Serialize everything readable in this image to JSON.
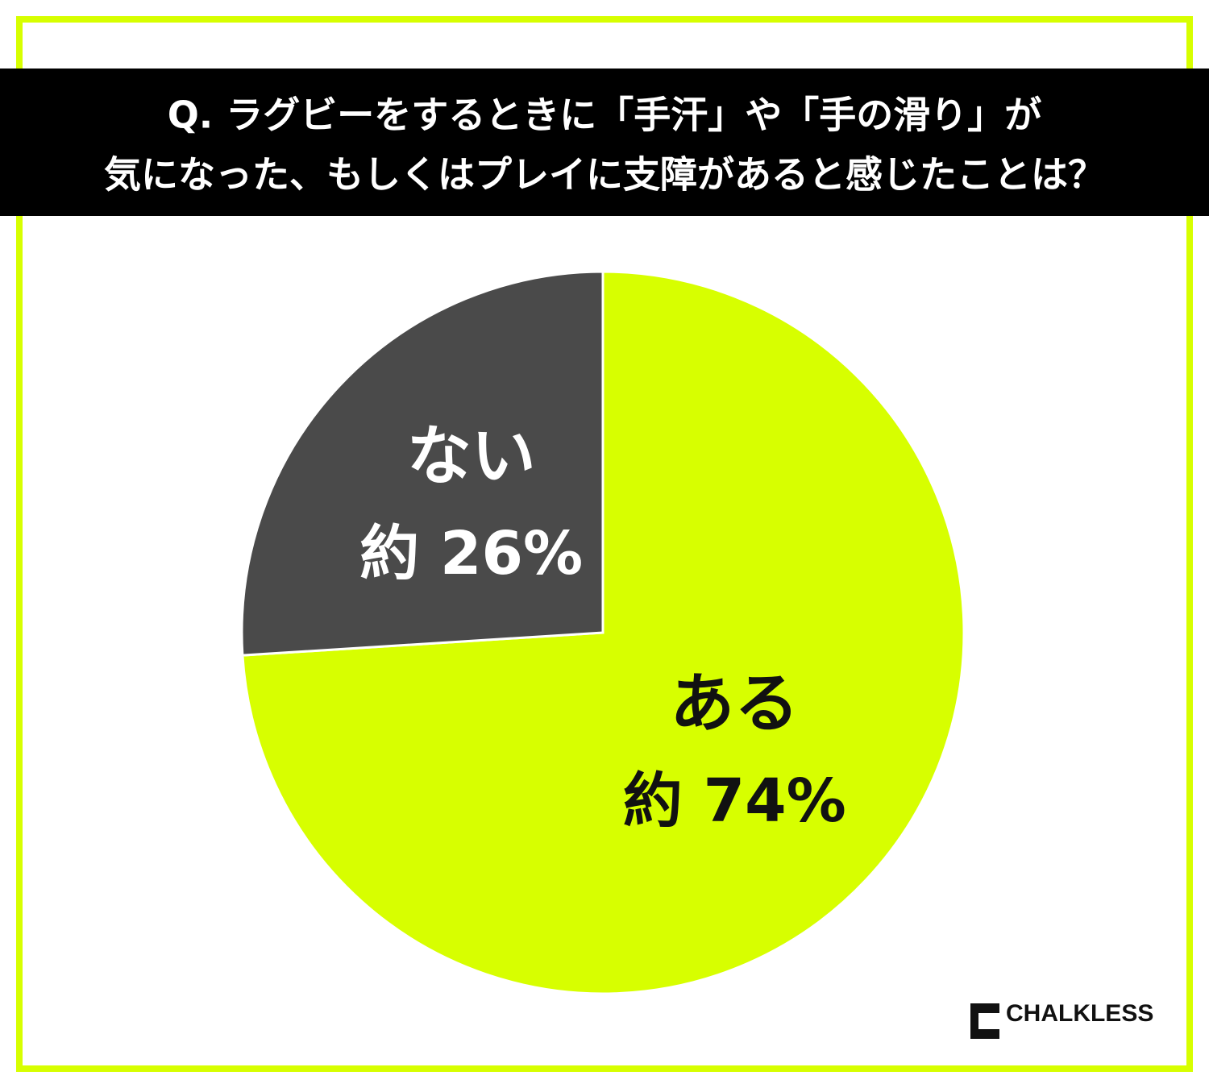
{
  "chart_data": {
    "type": "pie",
    "title": [
      "Q. ラグビーをするときに「手汗」や「手の滑り」が",
      "気になった、もしくはプレイに支障があると感じたことは？"
    ],
    "categories": [
      "ある",
      "ない"
    ],
    "values": [
      74,
      26
    ],
    "value_labels": [
      "約 74%",
      "約 26%"
    ],
    "colors": [
      "#d7ff00",
      "#4a4a4a"
    ],
    "label_colors": [
      "#111111",
      "#ffffff"
    ],
    "start": "top",
    "direction": "clockwise"
  },
  "logo": "CHALKLESS"
}
